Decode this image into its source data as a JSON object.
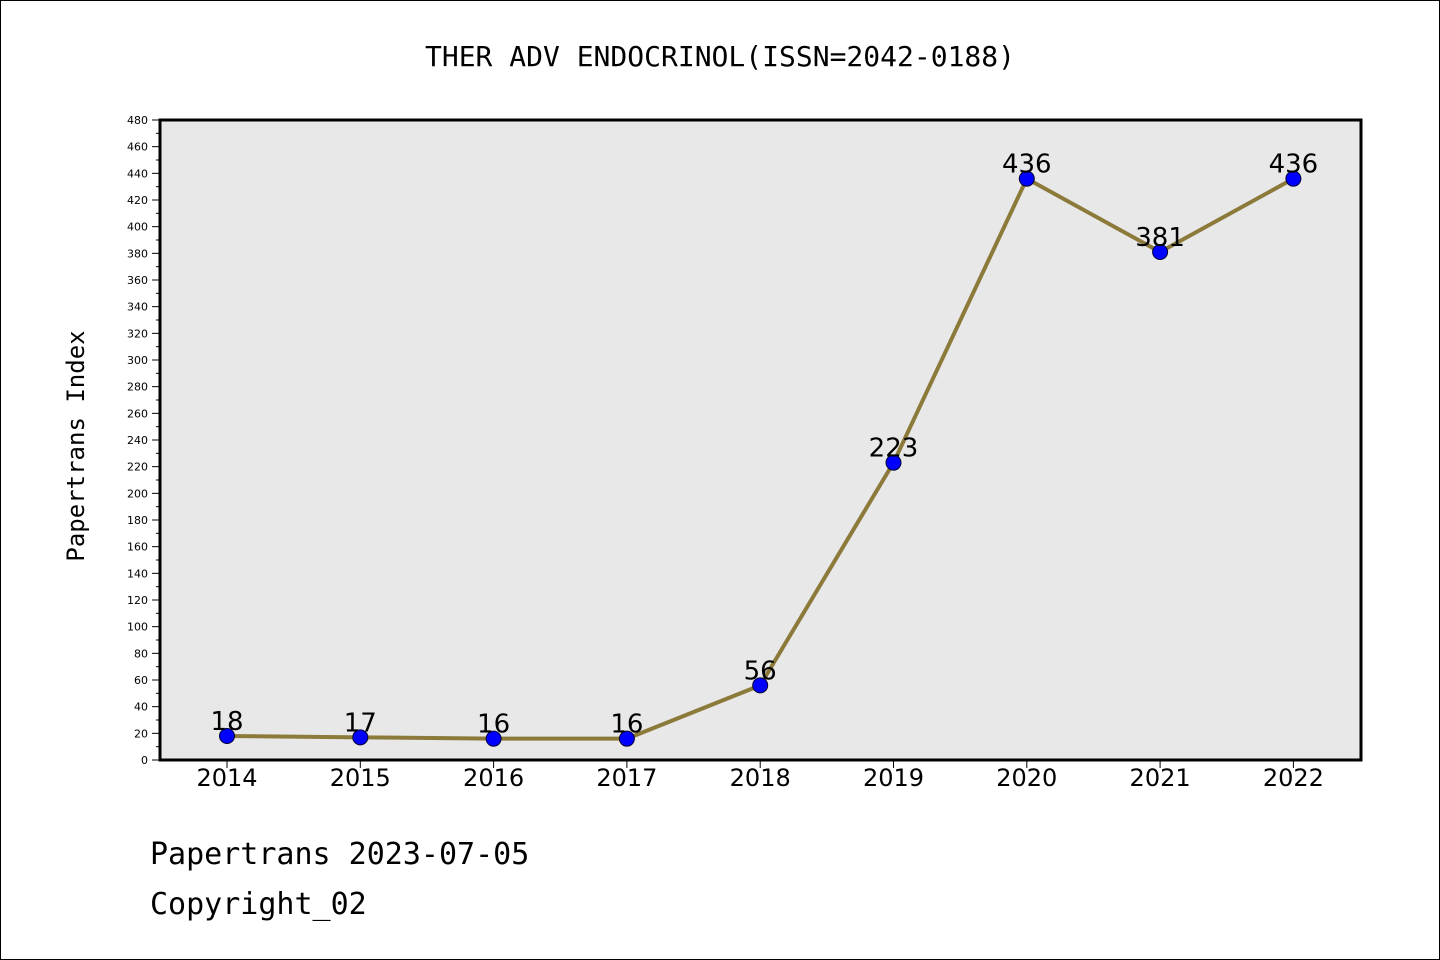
{
  "chart_data": {
    "type": "line",
    "title": "THER ADV ENDOCRINOL(ISSN=2042-0188)",
    "ylabel": "Papertrans Index",
    "xlabel": "",
    "categories": [
      "2014",
      "2015",
      "2016",
      "2017",
      "2018",
      "2019",
      "2020",
      "2021",
      "2022"
    ],
    "series": [
      {
        "values": [
          18,
          17,
          16,
          16,
          56,
          223,
          436,
          381,
          436
        ]
      }
    ],
    "data_labels": [
      "18",
      "17",
      "16",
      "16",
      "56",
      "223",
      "436",
      "381",
      "436"
    ],
    "ylim": [
      0,
      480
    ],
    "yticks": [
      "0",
      "20",
      "40",
      "60",
      "80",
      "100",
      "120",
      "140",
      "160",
      "180",
      "200",
      "220",
      "240",
      "260",
      "280",
      "300",
      "320",
      "340",
      "360",
      "380",
      "400",
      "420",
      "440",
      "460",
      "480"
    ],
    "grid": false,
    "legend": "none",
    "colors": {
      "line": "#8b7a3a",
      "marker": "#0000ff",
      "plot_bg": "#e8e8e8"
    }
  },
  "footer": {
    "line1": "Papertrans 2023-07-05",
    "line2": "Copyright_02"
  }
}
